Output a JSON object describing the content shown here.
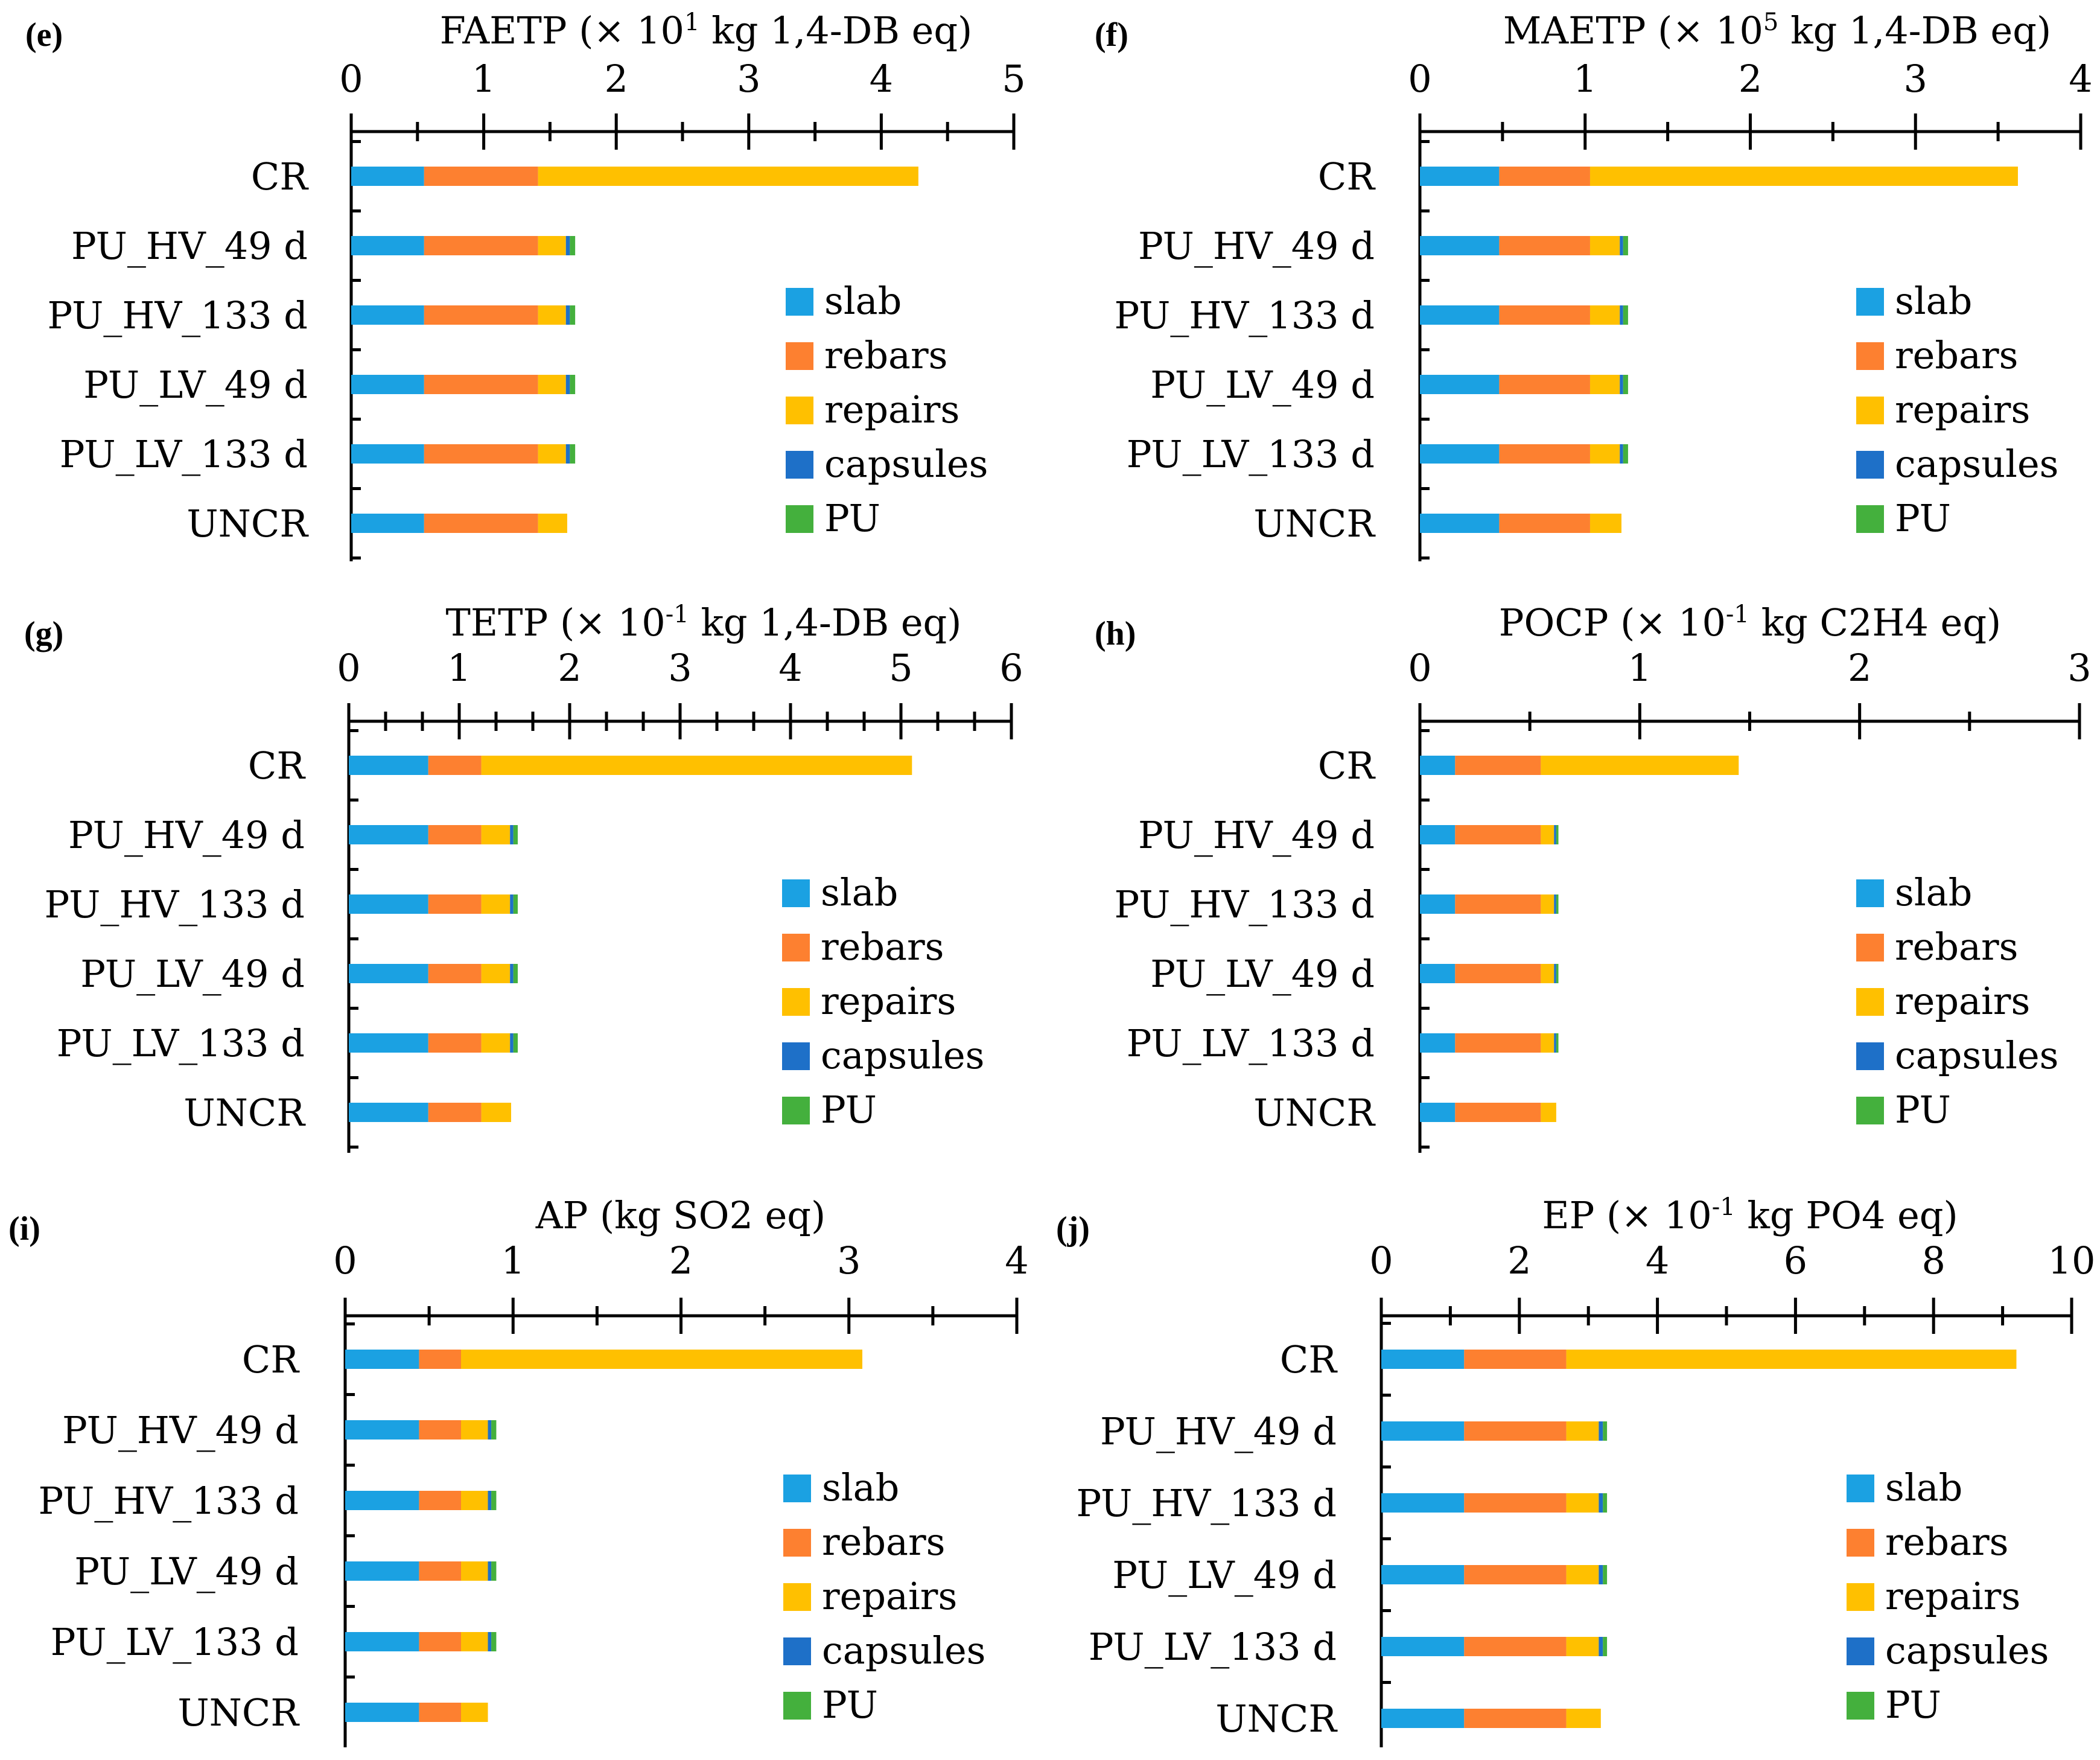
{
  "figure": {
    "legend": [
      {
        "name": "slab",
        "color": "#1ba1e2"
      },
      {
        "name": "rebars",
        "color": "#fd8030"
      },
      {
        "name": "repairs",
        "color": "#ffc000"
      },
      {
        "name": "capsules",
        "color": "#1e70c8"
      },
      {
        "name": "PU",
        "color": "#44b03d"
      }
    ]
  },
  "chart_data": [
    {
      "type": "bar",
      "orientation": "horizontal",
      "stacked": true,
      "panel_label": "(e)",
      "title_prefix": "FAETP (× 10",
      "title_sup": "1",
      "title_suffix": " kg 1,4-DB eq)",
      "xlim": [
        0,
        5
      ],
      "major_ticks": [
        0,
        1,
        2,
        3,
        4,
        5
      ],
      "minor_ticks_per_major": 1,
      "categories": [
        "CR",
        "PU_HV_49 d",
        "PU_HV_133 d",
        "PU_LV_49 d",
        "PU_LV_133 d",
        "UNCR"
      ],
      "series": [
        {
          "name": "slab",
          "values": [
            0.55,
            0.55,
            0.55,
            0.55,
            0.55,
            0.55
          ]
        },
        {
          "name": "rebars",
          "values": [
            0.86,
            0.86,
            0.86,
            0.86,
            0.86,
            0.86
          ]
        },
        {
          "name": "repairs",
          "values": [
            2.87,
            0.21,
            0.21,
            0.21,
            0.21,
            0.22
          ]
        },
        {
          "name": "capsules",
          "values": [
            0,
            0.03,
            0.03,
            0.03,
            0.03,
            0
          ]
        },
        {
          "name": "PU",
          "values": [
            0,
            0.04,
            0.04,
            0.04,
            0.04,
            0
          ]
        }
      ]
    },
    {
      "type": "bar",
      "orientation": "horizontal",
      "stacked": true,
      "panel_label": "(f)",
      "title_prefix": "MAETP (× 10",
      "title_sup": "5",
      "title_suffix": " kg 1,4-DB eq)",
      "xlim": [
        0,
        4
      ],
      "major_ticks": [
        0,
        1,
        2,
        3,
        4
      ],
      "minor_ticks_per_major": 1,
      "categories": [
        "CR",
        "PU_HV_49 d",
        "PU_HV_133 d",
        "PU_LV_49 d",
        "PU_LV_133 d",
        "UNCR"
      ],
      "series": [
        {
          "name": "slab",
          "values": [
            0.48,
            0.48,
            0.48,
            0.48,
            0.48,
            0.48
          ]
        },
        {
          "name": "rebars",
          "values": [
            0.55,
            0.55,
            0.55,
            0.55,
            0.55,
            0.55
          ]
        },
        {
          "name": "repairs",
          "values": [
            2.59,
            0.18,
            0.18,
            0.18,
            0.18,
            0.19
          ]
        },
        {
          "name": "capsules",
          "values": [
            0,
            0.02,
            0.02,
            0.02,
            0.02,
            0
          ]
        },
        {
          "name": "PU",
          "values": [
            0,
            0.03,
            0.03,
            0.03,
            0.03,
            0
          ]
        }
      ]
    },
    {
      "type": "bar",
      "orientation": "horizontal",
      "stacked": true,
      "panel_label": "(g)",
      "title_prefix": "TETP (× 10",
      "title_sup": "-1",
      "title_suffix": " kg 1,4-DB eq)",
      "xlim": [
        0,
        6
      ],
      "major_ticks": [
        0,
        1,
        2,
        3,
        4,
        5,
        6
      ],
      "minor_ticks_per_major": 2,
      "categories": [
        "CR",
        "PU_HV_49 d",
        "PU_HV_133 d",
        "PU_LV_49 d",
        "PU_LV_133 d",
        "UNCR"
      ],
      "series": [
        {
          "name": "slab",
          "values": [
            0.72,
            0.72,
            0.72,
            0.72,
            0.72,
            0.72
          ]
        },
        {
          "name": "rebars",
          "values": [
            0.48,
            0.48,
            0.48,
            0.48,
            0.48,
            0.48
          ]
        },
        {
          "name": "repairs",
          "values": [
            3.9,
            0.26,
            0.26,
            0.26,
            0.26,
            0.27
          ]
        },
        {
          "name": "capsules",
          "values": [
            0,
            0.03,
            0.03,
            0.03,
            0.03,
            0
          ]
        },
        {
          "name": "PU",
          "values": [
            0,
            0.04,
            0.04,
            0.04,
            0.04,
            0
          ]
        }
      ]
    },
    {
      "type": "bar",
      "orientation": "horizontal",
      "stacked": true,
      "panel_label": "(h)",
      "title_prefix": "POCP (× 10",
      "title_sup": "-1",
      "title_suffix": " kg C2H4 eq)",
      "xlim": [
        0,
        3
      ],
      "major_ticks": [
        0,
        1,
        2,
        3
      ],
      "minor_ticks_per_major": 1,
      "categories": [
        "CR",
        "PU_HV_49 d",
        "PU_HV_133 d",
        "PU_LV_49 d",
        "PU_LV_133 d",
        "UNCR"
      ],
      "series": [
        {
          "name": "slab",
          "values": [
            0.16,
            0.16,
            0.16,
            0.16,
            0.16,
            0.16
          ]
        },
        {
          "name": "rebars",
          "values": [
            0.39,
            0.39,
            0.39,
            0.39,
            0.39,
            0.39
          ]
        },
        {
          "name": "repairs",
          "values": [
            0.9,
            0.06,
            0.06,
            0.06,
            0.06,
            0.07
          ]
        },
        {
          "name": "capsules",
          "values": [
            0,
            0.01,
            0.01,
            0.01,
            0.01,
            0
          ]
        },
        {
          "name": "PU",
          "values": [
            0,
            0.01,
            0.01,
            0.01,
            0.01,
            0
          ]
        }
      ]
    },
    {
      "type": "bar",
      "orientation": "horizontal",
      "stacked": true,
      "panel_label": "(i)",
      "title_prefix": "AP (kg SO2 eq)",
      "title_sup": "",
      "title_suffix": "",
      "xlim": [
        0,
        4
      ],
      "major_ticks": [
        0,
        1,
        2,
        3,
        4
      ],
      "minor_ticks_per_major": 1,
      "categories": [
        "CR",
        "PU_HV_49 d",
        "PU_HV_133 d",
        "PU_LV_49 d",
        "PU_LV_133 d",
        "UNCR"
      ],
      "series": [
        {
          "name": "slab",
          "values": [
            0.44,
            0.44,
            0.44,
            0.44,
            0.44,
            0.44
          ]
        },
        {
          "name": "rebars",
          "values": [
            0.25,
            0.25,
            0.25,
            0.25,
            0.25,
            0.25
          ]
        },
        {
          "name": "repairs",
          "values": [
            2.39,
            0.16,
            0.16,
            0.16,
            0.16,
            0.16
          ]
        },
        {
          "name": "capsules",
          "values": [
            0,
            0.02,
            0.02,
            0.02,
            0.02,
            0
          ]
        },
        {
          "name": "PU",
          "values": [
            0,
            0.03,
            0.03,
            0.03,
            0.03,
            0
          ]
        }
      ]
    },
    {
      "type": "bar",
      "orientation": "horizontal",
      "stacked": true,
      "panel_label": "(j)",
      "title_prefix": "EP (× 10",
      "title_sup": "-1",
      "title_suffix": " kg PO4 eq)",
      "xlim": [
        0,
        10
      ],
      "major_ticks": [
        0,
        2,
        4,
        6,
        8,
        10
      ],
      "minor_ticks_per_major": 1,
      "categories": [
        "CR",
        "PU_HV_49 d",
        "PU_HV_133 d",
        "PU_LV_49 d",
        "PU_LV_133 d",
        "UNCR"
      ],
      "series": [
        {
          "name": "slab",
          "values": [
            1.2,
            1.2,
            1.2,
            1.2,
            1.2,
            1.2
          ]
        },
        {
          "name": "rebars",
          "values": [
            1.48,
            1.48,
            1.48,
            1.48,
            1.48,
            1.48
          ]
        },
        {
          "name": "repairs",
          "values": [
            6.52,
            0.47,
            0.47,
            0.47,
            0.47,
            0.5
          ]
        },
        {
          "name": "capsules",
          "values": [
            0,
            0.06,
            0.06,
            0.06,
            0.06,
            0
          ]
        },
        {
          "name": "PU",
          "values": [
            0,
            0.06,
            0.06,
            0.06,
            0.06,
            0
          ]
        }
      ]
    }
  ]
}
